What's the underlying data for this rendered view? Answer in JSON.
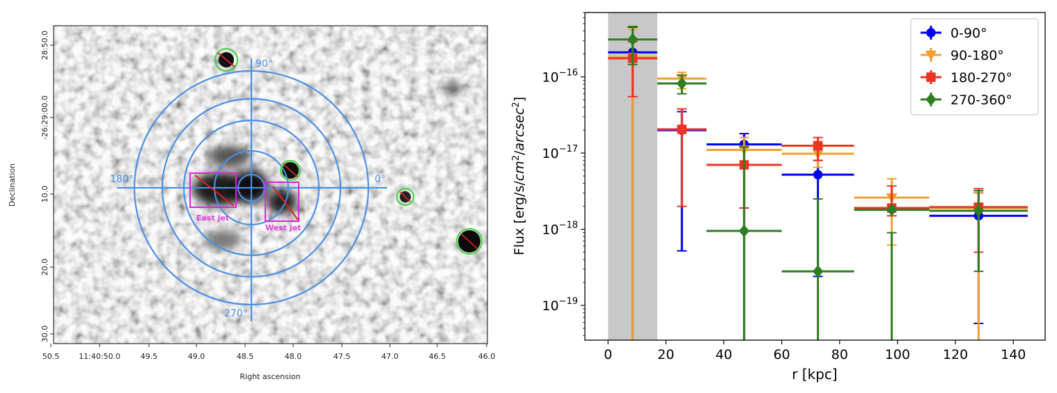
{
  "left_panel": {
    "xlabel": "Right ascension",
    "ylabel": "Declination",
    "x_ticks": [
      "50.5",
      "11:40:50.0",
      "49.5",
      "49.0",
      "48.5",
      "48.0",
      "47.5",
      "47.0",
      "46.5",
      "46.0"
    ],
    "y_ticks": [
      "28:50.0",
      "-26:29:00.0",
      "10.0",
      "20.0",
      "30.0"
    ],
    "angle_labels": {
      "a90": "90°",
      "a180": "180°",
      "a0": "0°",
      "a270": "270°"
    },
    "region_labels": {
      "east": "East jet",
      "west": "West jet"
    },
    "colors": {
      "rings": "#4a90e2",
      "jet_boxes": "#e020e0",
      "point_sources": "#4cd04c",
      "source_lines": "#e02020"
    }
  },
  "chart_data": {
    "type": "scatter",
    "xlabel": "r [kpc]",
    "ylabel_main": "Flux [erg/s/",
    "ylabel_parts": [
      "cm",
      "2",
      "/",
      "arcsec",
      "2",
      "]"
    ],
    "xlim": [
      -8,
      151
    ],
    "ylim": [
      3.5e-20,
      7e-16
    ],
    "yscale": "log",
    "x_ticks": [
      0,
      20,
      40,
      60,
      80,
      100,
      120,
      140
    ],
    "y_ticks": [
      {
        "value": 1e-16,
        "base": "10",
        "exp": "−16"
      },
      {
        "value": 1e-17,
        "base": "10",
        "exp": "−17"
      },
      {
        "value": 1e-18,
        "base": "10",
        "exp": "−18"
      },
      {
        "value": 1e-19,
        "base": "10",
        "exp": "−19"
      }
    ],
    "shaded_region": [
      0,
      17
    ],
    "legend_position": "top-right",
    "series": [
      {
        "name": "0-90°",
        "color": "#0000ee",
        "marker": "circle",
        "points": [
          {
            "x": 8.5,
            "xerr": 8.5,
            "y": 2.1e-16,
            "ylo": 1e-21,
            "yhi": 4.5e-16
          },
          {
            "x": 25.5,
            "xerr": 8.5,
            "y": 2e-17,
            "ylo": 5.2e-19,
            "yhi": 3.5e-17
          },
          {
            "x": 47,
            "xerr": 13,
            "y": 1.3e-17,
            "ylo": 1e-21,
            "yhi": 1.8e-17
          },
          {
            "x": 72.5,
            "xerr": 12.5,
            "y": 5.2e-18,
            "ylo": 2.4e-19,
            "yhi": 8e-18
          },
          {
            "x": 128,
            "xerr": 17,
            "y": 1.5e-18,
            "ylo": 5.8e-20,
            "yhi": 3e-18
          }
        ]
      },
      {
        "name": "90-180°",
        "color": "#f0a030",
        "marker": "triangle-down",
        "points": [
          {
            "x": 8.5,
            "xerr": 8.5,
            "y": 1.8e-16,
            "ylo": 1e-21,
            "yhi": 4.2e-16
          },
          {
            "x": 25.5,
            "xerr": 8.5,
            "y": 9.5e-17,
            "ylo": 7e-17,
            "yhi": 1.15e-16
          },
          {
            "x": 47,
            "xerr": 13,
            "y": 1.1e-17,
            "ylo": 1e-21,
            "yhi": 1.6e-17
          },
          {
            "x": 72.5,
            "xerr": 12.5,
            "y": 9.8e-18,
            "ylo": 6.5e-18,
            "yhi": 1.3e-17
          },
          {
            "x": 98,
            "xerr": 13,
            "y": 2.6e-18,
            "ylo": 6.2e-19,
            "yhi": 4.6e-18
          },
          {
            "x": 128,
            "xerr": 17,
            "y": 1.9e-18,
            "ylo": 1e-21,
            "yhi": 3e-18
          }
        ]
      },
      {
        "name": "180-270°",
        "color": "#ee3322",
        "marker": "square",
        "points": [
          {
            "x": 8.5,
            "xerr": 8.5,
            "y": 1.75e-16,
            "ylo": 5.5e-17,
            "yhi": 2.9e-16
          },
          {
            "x": 25.5,
            "xerr": 8.5,
            "y": 2.05e-17,
            "ylo": 2e-18,
            "yhi": 3.8e-17
          },
          {
            "x": 47,
            "xerr": 13,
            "y": 7e-18,
            "ylo": 1.9e-18,
            "yhi": 1.2e-17
          },
          {
            "x": 72.5,
            "xerr": 12.5,
            "y": 1.25e-17,
            "ylo": 8e-18,
            "yhi": 1.6e-17
          },
          {
            "x": 98,
            "xerr": 13,
            "y": 1.9e-18,
            "ylo": 1.5e-18,
            "yhi": 3.7e-18
          },
          {
            "x": 128,
            "xerr": 17,
            "y": 1.95e-18,
            "ylo": 5e-19,
            "yhi": 3.4e-18
          }
        ]
      },
      {
        "name": "270-360°",
        "color": "#2e7d20",
        "marker": "diamond",
        "points": [
          {
            "x": 8.5,
            "xerr": 8.5,
            "y": 3.1e-16,
            "ylo": 1.45e-16,
            "yhi": 4.6e-16
          },
          {
            "x": 25.5,
            "xerr": 8.5,
            "y": 8.2e-17,
            "ylo": 6e-17,
            "yhi": 1.05e-16
          },
          {
            "x": 47,
            "xerr": 13,
            "y": 9.5e-19,
            "ylo": 1e-21,
            "yhi": 1.2e-17
          },
          {
            "x": 72.5,
            "xerr": 12.5,
            "y": 2.8e-19,
            "ylo": 1e-21,
            "yhi": 2.5e-18
          },
          {
            "x": 98,
            "xerr": 13,
            "y": 1.8e-18,
            "ylo": 1e-21,
            "yhi": 9e-19
          },
          {
            "x": 128,
            "xerr": 17,
            "y": 1.75e-18,
            "ylo": 2.8e-19,
            "yhi": 3.2e-18
          }
        ]
      }
    ]
  }
}
